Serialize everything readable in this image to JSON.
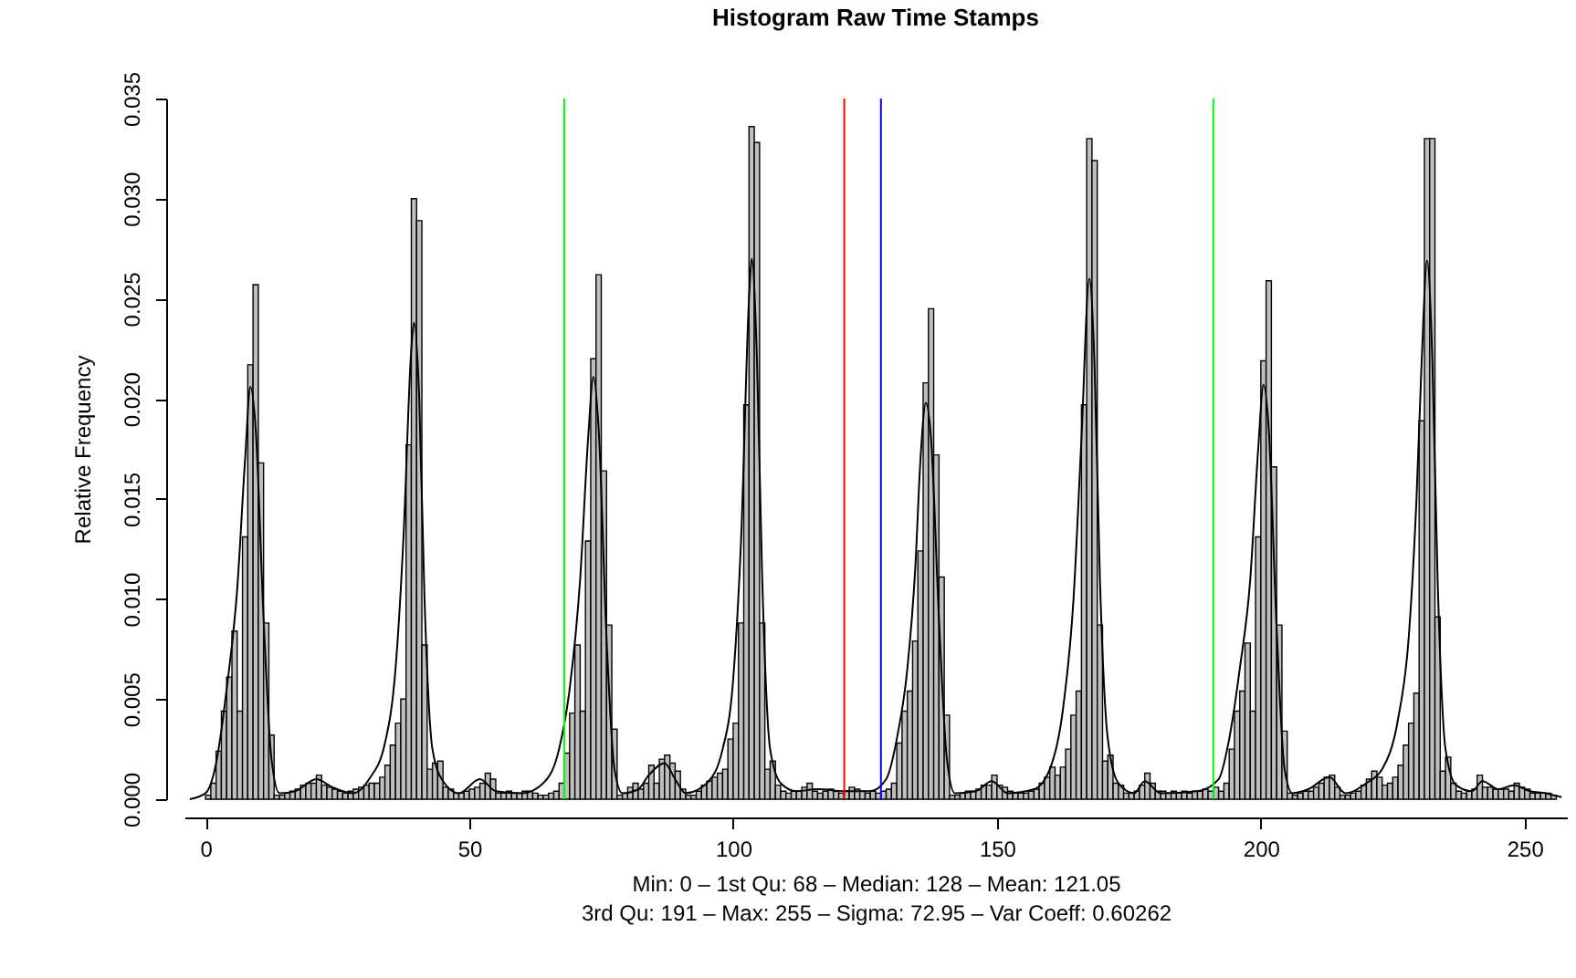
{
  "chart_data": {
    "type": "histogram",
    "title": "Histogram Raw Time Stamps",
    "ylabel": "Relative Frequency",
    "annotations": [
      "Min: 0 – 1st Qu: 68 – Median: 128 – Mean: 121.05",
      "3rd Qu: 191 – Max: 255 – Sigma: 72.95 – Var Coeff: 0.60262"
    ],
    "xlim": [
      -4,
      258
    ],
    "xticks": [
      0,
      50,
      100,
      150,
      200,
      250
    ],
    "ylim": [
      0,
      0.035
    ],
    "yticks": [
      {
        "value": 0,
        "label": "0.000"
      },
      {
        "value": 0.005,
        "label": "0.005"
      },
      {
        "value": 0.01,
        "label": "0.010"
      },
      {
        "value": 0.015,
        "label": "0.015"
      },
      {
        "value": 0.02,
        "label": "0.020"
      },
      {
        "value": 0.025,
        "label": "0.025"
      },
      {
        "value": 0.03,
        "label": "0.030"
      },
      {
        "value": 0.035,
        "label": "0.035"
      }
    ],
    "series": [
      {
        "type": "histogram",
        "color": "#bebebe",
        "bins": [
          0,
          1,
          2,
          3,
          4,
          5,
          6,
          7,
          8,
          9,
          10,
          11,
          12,
          13,
          14,
          15,
          16,
          17,
          18,
          19,
          20,
          21,
          22,
          23,
          24,
          25,
          26,
          27,
          28,
          29,
          30,
          31,
          32,
          33,
          34,
          35,
          36,
          37,
          38,
          39,
          40,
          41,
          42,
          43,
          44,
          45,
          46,
          47,
          48,
          49,
          50,
          51,
          52,
          53,
          54,
          55,
          56,
          57,
          58,
          59,
          60,
          61,
          62,
          63,
          64,
          65,
          66,
          67,
          68,
          69,
          70,
          71,
          72,
          73,
          74,
          75,
          76,
          77,
          78,
          79,
          80,
          81,
          82,
          83,
          84,
          85,
          86,
          87,
          88,
          89,
          90,
          91,
          92,
          93,
          94,
          95,
          96,
          97,
          98,
          99,
          100,
          101,
          102,
          103,
          104,
          105,
          106,
          107,
          108,
          109,
          110,
          111,
          112,
          113,
          114,
          115,
          116,
          117,
          118,
          119,
          120,
          121,
          122,
          123,
          124,
          125,
          126,
          127,
          128,
          129,
          130,
          131,
          132,
          133,
          134,
          135,
          136,
          137,
          138,
          139,
          140,
          141,
          142,
          143,
          144,
          145,
          146,
          147,
          148,
          149,
          150,
          151,
          152,
          153,
          154,
          155,
          156,
          157,
          158,
          159,
          160,
          161,
          162,
          163,
          164,
          165,
          166,
          167,
          168,
          169,
          170,
          171,
          172,
          173,
          174,
          175,
          176,
          177,
          178,
          179,
          180,
          181,
          182,
          183,
          184,
          185,
          186,
          187,
          188,
          189,
          190,
          191,
          192,
          193,
          194,
          195,
          196,
          197,
          198,
          199,
          200,
          201,
          202,
          203,
          204,
          205,
          206,
          207,
          208,
          209,
          210,
          211,
          212,
          213,
          214,
          215,
          216,
          217,
          218,
          219,
          220,
          221,
          222,
          223,
          224,
          225,
          226,
          227,
          228,
          229,
          230,
          231,
          232,
          233,
          234,
          235,
          236,
          237,
          238,
          239,
          240,
          241,
          242,
          243,
          244,
          245,
          246,
          247,
          248,
          249,
          250,
          251,
          252,
          253,
          254,
          255,
          256
        ],
        "values": [
          0.0002,
          0.0008,
          0.0024,
          0.0044,
          0.0061,
          0.0084,
          0.0044,
          0.0131,
          0.0217,
          0.0257,
          0.0168,
          0.0088,
          0.0032,
          0.0002,
          0.0002,
          0.0003,
          0.0004,
          0.0005,
          0.0007,
          0.0008,
          0.0008,
          0.0012,
          0.0007,
          0.0006,
          0.0005,
          0.0004,
          0.0003,
          0.0004,
          0.0005,
          0.0006,
          0.0007,
          0.0008,
          0.0008,
          0.0011,
          0.0017,
          0.0027,
          0.0038,
          0.005,
          0.0177,
          0.03,
          0.0289,
          0.0077,
          0.0015,
          0.0018,
          0.0019,
          0.0006,
          0.0005,
          0.0003,
          0.0003,
          0.0004,
          0.0005,
          0.0006,
          0.0008,
          0.0013,
          0.001,
          0.0003,
          0.0003,
          0.0004,
          0.0003,
          0.0003,
          0.0004,
          0.0004,
          0.0003,
          0.0002,
          0.0002,
          0.0003,
          0.0004,
          0.0008,
          0.0023,
          0.0043,
          0.0077,
          0.0044,
          0.0129,
          0.022,
          0.0262,
          0.0164,
          0.0087,
          0.0035,
          0.0002,
          0.0003,
          0.0006,
          0.0008,
          0.0005,
          0.0008,
          0.0017,
          0.0008,
          0.002,
          0.0022,
          0.0018,
          0.0014,
          0.0005,
          0.0002,
          0.0002,
          0.0004,
          0.0007,
          0.0009,
          0.0011,
          0.0013,
          0.0015,
          0.003,
          0.0038,
          0.0088,
          0.0197,
          0.0336,
          0.0328,
          0.0088,
          0.0015,
          0.0019,
          0.0007,
          0.0004,
          0.0003,
          0.0004,
          0.0004,
          0.0006,
          0.0008,
          0.0004,
          0.0003,
          0.0004,
          0.0005,
          0.0004,
          0.0003,
          0.0004,
          0.0006,
          0.0005,
          0.0004,
          0.0003,
          0.0004,
          0.0003,
          0.0004,
          0.0005,
          0.0008,
          0.0028,
          0.0044,
          0.0054,
          0.0079,
          0.0124,
          0.0208,
          0.0245,
          0.0172,
          0.0111,
          0.0042,
          0.0002,
          0.0002,
          0.0003,
          0.0004,
          0.0004,
          0.0005,
          0.0007,
          0.0007,
          0.0012,
          0.0007,
          0.0006,
          0.0004,
          0.0003,
          0.0003,
          0.0003,
          0.0004,
          0.0005,
          0.0008,
          0.0011,
          0.0016,
          0.0012,
          0.0016,
          0.0025,
          0.0042,
          0.0054,
          0.0197,
          0.033,
          0.0319,
          0.0087,
          0.0019,
          0.0022,
          0.0008,
          0.0007,
          0.0003,
          0.0003,
          0.0004,
          0.0007,
          0.0013,
          0.0008,
          0.0004,
          0.0004,
          0.0003,
          0.0004,
          0.0003,
          0.0004,
          0.0003,
          0.0004,
          0.0004,
          0.0005,
          0.0004,
          0.0006,
          0.0004,
          0.0008,
          0.0025,
          0.0044,
          0.0054,
          0.0078,
          0.0044,
          0.0131,
          0.0219,
          0.0259,
          0.0166,
          0.0087,
          0.0034,
          0.0003,
          0.0002,
          0.0003,
          0.0004,
          0.0004,
          0.0006,
          0.0008,
          0.0011,
          0.0012,
          0.0006,
          0.0002,
          0.0002,
          0.0003,
          0.0004,
          0.0007,
          0.001,
          0.0014,
          0.0011,
          0.0007,
          0.0008,
          0.0011,
          0.0017,
          0.0027,
          0.0038,
          0.0053,
          0.0189,
          0.033,
          0.033,
          0.0091,
          0.0014,
          0.0021,
          0.0008,
          0.0004,
          0.0003,
          0.0004,
          0.0005,
          0.0012,
          0.0006,
          0.0006,
          0.0005,
          0.0005,
          0.0005,
          0.0004,
          0.0008,
          0.0006,
          0.0005,
          0.0003,
          0.0003,
          0.0003,
          0.0003,
          0.0002
        ]
      },
      {
        "type": "line",
        "color": "#000000",
        "x": [
          -3,
          0,
          2,
          4,
          6,
          7.5,
          8.5,
          9.5,
          11,
          12.5,
          14,
          17,
          21,
          24,
          28,
          31,
          34,
          36,
          37.5,
          39,
          39.5,
          40.5,
          41.5,
          43,
          45,
          48,
          52,
          55,
          60,
          64,
          67,
          69,
          71,
          72.5,
          73.5,
          74.5,
          76,
          77.5,
          79,
          82,
          84,
          87,
          89,
          91,
          95,
          98,
          100,
          101.5,
          103,
          103.5,
          104.5,
          105.5,
          107,
          109,
          112,
          116,
          121,
          126,
          129,
          131,
          133,
          134.5,
          135.5,
          136.5,
          137.5,
          139,
          140.5,
          142,
          146,
          149,
          152,
          157,
          160,
          162.5,
          164.5,
          166,
          167.5,
          168.5,
          169.5,
          171,
          173,
          176,
          178,
          181,
          188,
          192,
          194,
          196,
          198,
          199.5,
          200.5,
          201.5,
          203,
          204.5,
          206,
          209,
          213,
          216,
          220,
          223,
          226,
          228,
          229.5,
          230.5,
          231.5,
          232.5,
          233.5,
          235,
          237,
          240,
          242,
          245,
          248,
          251,
          254,
          257
        ],
        "values": [
          0,
          0.0003,
          0.0018,
          0.0055,
          0.0105,
          0.017,
          0.0206,
          0.0185,
          0.009,
          0.002,
          0.0003,
          0.0004,
          0.001,
          0.0006,
          0.0003,
          0.001,
          0.0028,
          0.0065,
          0.013,
          0.0225,
          0.0238,
          0.02,
          0.01,
          0.0025,
          0.0009,
          0.0003,
          0.001,
          0.0004,
          0.0003,
          0.0008,
          0.0025,
          0.0055,
          0.011,
          0.018,
          0.0211,
          0.0185,
          0.008,
          0.0015,
          0.0003,
          0.0005,
          0.0012,
          0.0018,
          0.001,
          0.0003,
          0.0008,
          0.0025,
          0.006,
          0.013,
          0.025,
          0.027,
          0.022,
          0.011,
          0.0025,
          0.0008,
          0.0004,
          0.0005,
          0.0004,
          0.0004,
          0.001,
          0.003,
          0.0065,
          0.0115,
          0.017,
          0.0198,
          0.018,
          0.009,
          0.002,
          0.0003,
          0.0004,
          0.0009,
          0.0003,
          0.0005,
          0.0015,
          0.0045,
          0.01,
          0.018,
          0.026,
          0.0215,
          0.011,
          0.003,
          0.0008,
          0.0003,
          0.0009,
          0.0003,
          0.0004,
          0.001,
          0.003,
          0.0065,
          0.011,
          0.0175,
          0.0207,
          0.0185,
          0.0085,
          0.0015,
          0.0003,
          0.0005,
          0.0011,
          0.0003,
          0.0008,
          0.0015,
          0.004,
          0.008,
          0.015,
          0.022,
          0.0269,
          0.022,
          0.011,
          0.0025,
          0.0007,
          0.0004,
          0.0009,
          0.0005,
          0.0007,
          0.0004,
          0.0003,
          0.0001
        ]
      }
    ],
    "ref_lines": [
      {
        "axis": "x",
        "value": 68,
        "color": "#00ff00"
      },
      {
        "axis": "x",
        "value": 121.05,
        "color": "#ff0000"
      },
      {
        "axis": "x",
        "value": 128,
        "color": "#0000ff"
      },
      {
        "axis": "x",
        "value": 191,
        "color": "#00ff00"
      }
    ]
  }
}
